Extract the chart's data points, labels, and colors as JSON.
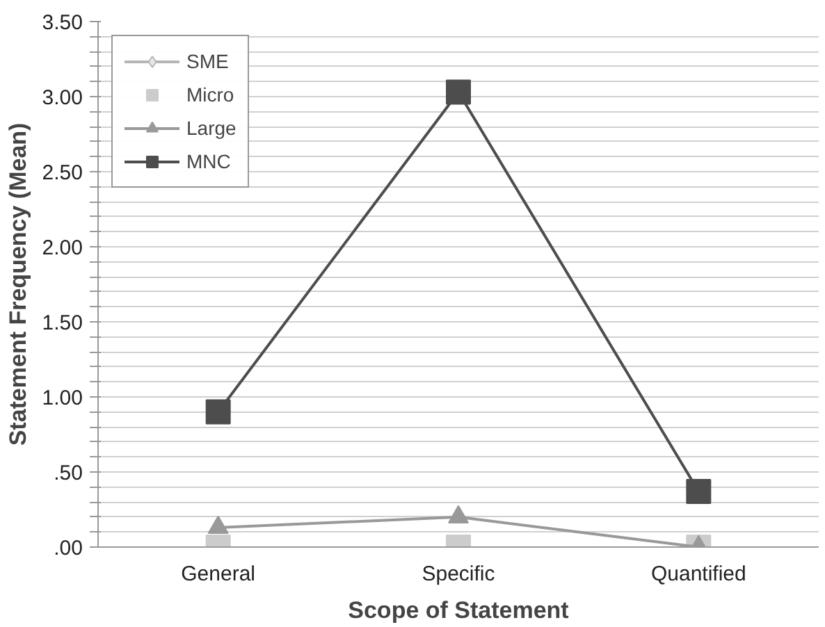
{
  "chart_data": {
    "type": "line",
    "xlabel": "Scope of Statement",
    "ylabel": "Statement Frequency (Mean)",
    "categories": [
      "General",
      "Specific",
      "Quantified"
    ],
    "series": [
      {
        "name": "SME",
        "color": "#b5b5b5",
        "marker": "diamond",
        "values": [
          null,
          null,
          null
        ]
      },
      {
        "name": "Micro",
        "type": "scatter",
        "color": "#cccccc",
        "marker": "square",
        "values": [
          0,
          0,
          0
        ]
      },
      {
        "name": "Large",
        "color": "#999999",
        "marker": "triangle",
        "values": [
          0.13,
          0.2,
          0
        ]
      },
      {
        "name": "MNC",
        "color": "#4d4d4d",
        "marker": "square",
        "values": [
          0.9,
          3.03,
          0.37
        ]
      }
    ],
    "ylim": [
      0,
      3.5
    ],
    "yticks": [
      {
        "value": 0,
        "label": ".00"
      },
      {
        "value": 0.1,
        "label": null
      },
      {
        "value": 0.2,
        "label": null
      },
      {
        "value": 0.3,
        "label": null
      },
      {
        "value": 0.4,
        "label": null
      },
      {
        "value": 0.5,
        "label": ".50"
      },
      {
        "value": 0.6,
        "label": null
      },
      {
        "value": 0.7,
        "label": null
      },
      {
        "value": 0.8,
        "label": null
      },
      {
        "value": 0.9,
        "label": null
      },
      {
        "value": 1.0,
        "label": "1.00"
      },
      {
        "value": 1.1,
        "label": null
      },
      {
        "value": 1.2,
        "label": null
      },
      {
        "value": 1.3,
        "label": null
      },
      {
        "value": 1.4,
        "label": null
      },
      {
        "value": 1.5,
        "label": "1.50"
      },
      {
        "value": 1.6,
        "label": null
      },
      {
        "value": 1.7,
        "label": null
      },
      {
        "value": 1.8,
        "label": null
      },
      {
        "value": 1.9,
        "label": null
      },
      {
        "value": 2.0,
        "label": "2.00"
      },
      {
        "value": 2.1,
        "label": null
      },
      {
        "value": 2.2,
        "label": null
      },
      {
        "value": 2.3,
        "label": null
      },
      {
        "value": 2.4,
        "label": null
      },
      {
        "value": 2.5,
        "label": "2.50"
      },
      {
        "value": 2.6,
        "label": null
      },
      {
        "value": 2.7,
        "label": null
      },
      {
        "value": 2.8,
        "label": null
      },
      {
        "value": 2.9,
        "label": null
      },
      {
        "value": 3.0,
        "label": "3.00"
      },
      {
        "value": 3.1,
        "label": null
      },
      {
        "value": 3.2,
        "label": null
      },
      {
        "value": 3.3,
        "label": null
      },
      {
        "value": 3.4,
        "label": null
      },
      {
        "value": 3.5,
        "label": "3.50"
      }
    ],
    "grid": "y",
    "legend": "top left"
  }
}
